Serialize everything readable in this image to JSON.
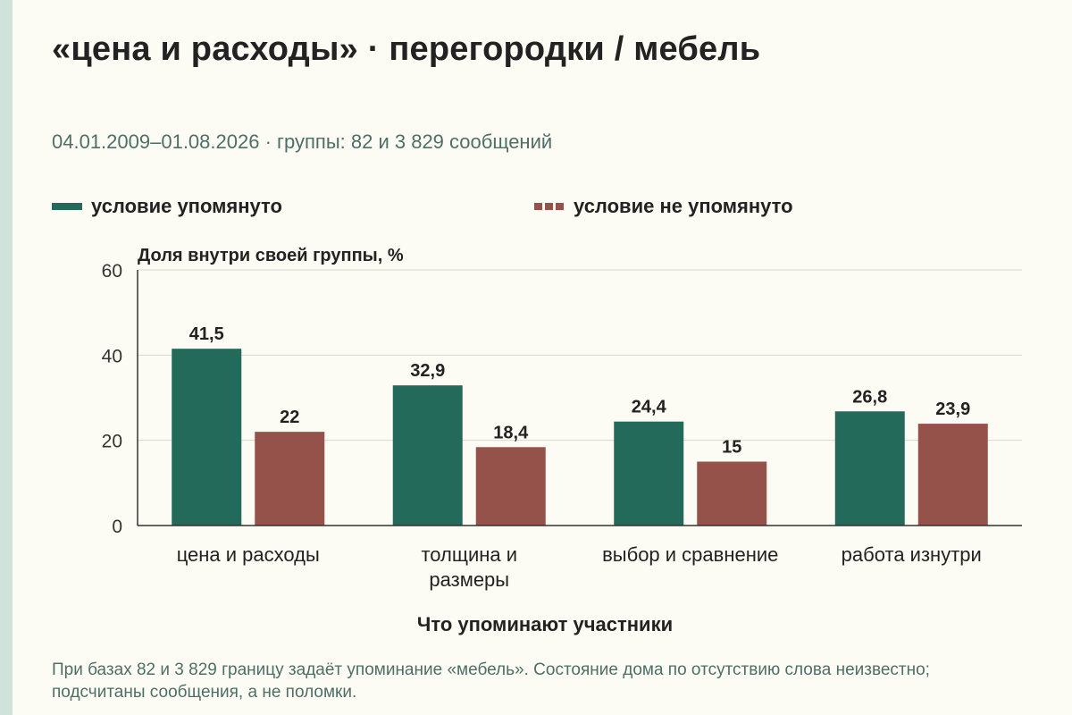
{
  "title": "«цена и расходы» · перегородки / мебель",
  "subtitle": "04.01.2009–01.08.2026 · группы: 82 и 3 829 сообщений",
  "footnote": "При базах 82 и 3 829 границу задаёт упоминание «мебель». Состояние дома по отсутствию слова неизвестно; подсчитаны сообщения, а не поломки.",
  "colors": {
    "mentioned": "#246a5a",
    "not_mentioned": "#94524a",
    "background": "#fdfcf4"
  },
  "chart_data": {
    "type": "bar",
    "title": "«цена и расходы» · перегородки / мебель",
    "xlabel": "Что упоминают участники",
    "ylabel": "Доля внутри своей группы, %",
    "ylim": [
      0,
      60
    ],
    "yticks": [
      0,
      20,
      40,
      60
    ],
    "grid": true,
    "legend_position": "top",
    "categories": [
      [
        "цена и расходы"
      ],
      [
        "толщина и",
        "размеры"
      ],
      [
        "выбор и сравнение"
      ],
      [
        "работа изнутри"
      ]
    ],
    "series": [
      {
        "name": "условие упомянуто",
        "values": [
          41.5,
          32.9,
          24.4,
          26.8
        ],
        "labels": [
          "41,5",
          "32,9",
          "24,4",
          "26,8"
        ],
        "color": "#246a5a"
      },
      {
        "name": "условие не упомянуто",
        "values": [
          22,
          18.4,
          15,
          23.9
        ],
        "labels": [
          "22",
          "18,4",
          "15",
          "23,9"
        ],
        "color": "#94524a"
      }
    ]
  }
}
